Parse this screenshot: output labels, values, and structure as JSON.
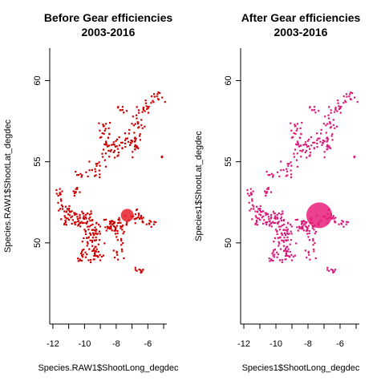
{
  "chart_data": [
    {
      "type": "scatter",
      "title_line1": "Before Gear efficiencies",
      "title_line2": "2003-2016",
      "xlabel": "Species.RAW1$ShootLong_degdec",
      "ylabel": "Species.RAW1$ShootLat_degdec",
      "xlim": [
        -12.2,
        -4.8
      ],
      "ylim": [
        45,
        62
      ],
      "xticks": [
        "-12",
        "-10",
        "-8",
        "-6"
      ],
      "yticks": [
        "50",
        "55",
        "60"
      ],
      "color": "#cc0000",
      "highlight": {
        "x": -7.3,
        "y": 51.7,
        "color": "#e8202c"
      }
    },
    {
      "type": "scatter",
      "title_line1": "After Gear efficiencies",
      "title_line2": "2003-2016",
      "xlabel": "Species1$ShootLong_degdec",
      "ylabel": "Species1$ShootLat_degdec",
      "xlim": [
        -12.2,
        -4.8
      ],
      "ylim": [
        45,
        62
      ],
      "xticks": [
        "-12",
        "-10",
        "-8",
        "-6"
      ],
      "yticks": [
        "50",
        "55",
        "60"
      ],
      "color": "#d81b7a",
      "highlight": {
        "x": -7.3,
        "y": 51.7,
        "color": "#e8207a"
      }
    }
  ],
  "colors": {
    "text": "#000000",
    "background": "#ffffff"
  }
}
